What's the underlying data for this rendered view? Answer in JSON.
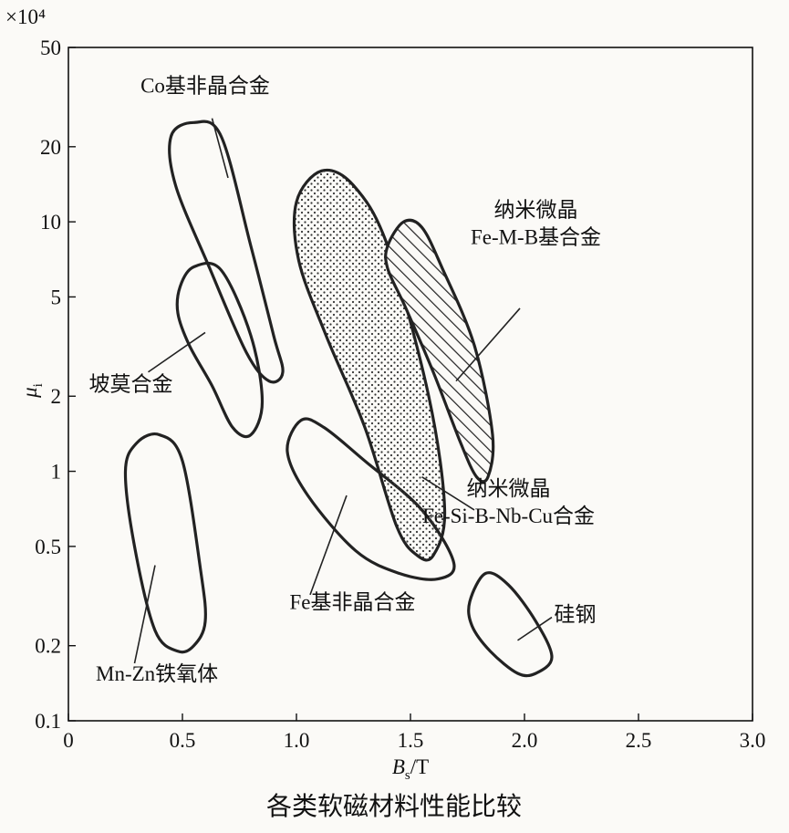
{
  "chart_data": {
    "type": "scatter",
    "title": "各类软磁材料性能比较",
    "multiplier_label": "×10⁴",
    "xlabel": {
      "base": "B",
      "sub": "s",
      "rest": "/T"
    },
    "ylabel": {
      "base": "μ",
      "sub": "i"
    },
    "xlim": [
      0,
      3.0
    ],
    "ylim": [
      0.1,
      50
    ],
    "y_scale": "log",
    "x_ticks": [
      "0",
      "0.5",
      "1.0",
      "1.5",
      "2.0",
      "2.5",
      "3.0"
    ],
    "x_tick_values": [
      0,
      0.5,
      1.0,
      1.5,
      2.0,
      2.5,
      3.0
    ],
    "y_ticks": [
      "0.1",
      "0.2",
      "0.5",
      "1",
      "2",
      "5",
      "10",
      "20",
      "50"
    ],
    "y_tick_values": [
      0.1,
      0.2,
      0.5,
      1,
      2,
      5,
      10,
      20,
      50
    ],
    "regions": [
      {
        "label": "Co基非晶合金",
        "fill": "none",
        "pts": [
          [
            0.45,
            22
          ],
          [
            0.55,
            25
          ],
          [
            0.67,
            22
          ],
          [
            0.8,
            8
          ],
          [
            0.9,
            3.5
          ],
          [
            0.94,
            2.5
          ],
          [
            0.88,
            2.3
          ],
          [
            0.78,
            3
          ],
          [
            0.62,
            6.5
          ],
          [
            0.47,
            14
          ]
        ]
      },
      {
        "label": "坡莫合金",
        "fill": "none",
        "pts": [
          [
            0.49,
            5.5
          ],
          [
            0.55,
            6.6
          ],
          [
            0.67,
            6.4
          ],
          [
            0.8,
            3.5
          ],
          [
            0.85,
            1.9
          ],
          [
            0.8,
            1.4
          ],
          [
            0.72,
            1.5
          ],
          [
            0.63,
            2.2
          ],
          [
            0.53,
            3.2
          ],
          [
            0.48,
            4.3
          ]
        ]
      },
      {
        "label": "Mn-Zn铁氧体",
        "fill": "none",
        "pts": [
          [
            0.25,
            1
          ],
          [
            0.3,
            1.3
          ],
          [
            0.4,
            1.4
          ],
          [
            0.5,
            1.1
          ],
          [
            0.58,
            0.4
          ],
          [
            0.6,
            0.25
          ],
          [
            0.55,
            0.2
          ],
          [
            0.48,
            0.19
          ],
          [
            0.38,
            0.23
          ],
          [
            0.29,
            0.5
          ]
        ]
      },
      {
        "label": "Fe基非晶合金",
        "fill": "none",
        "pts": [
          [
            0.96,
            1.2
          ],
          [
            1.02,
            1.6
          ],
          [
            1.12,
            1.5
          ],
          [
            1.3,
            1.1
          ],
          [
            1.55,
            0.7
          ],
          [
            1.69,
            0.43
          ],
          [
            1.62,
            0.37
          ],
          [
            1.45,
            0.39
          ],
          [
            1.26,
            0.48
          ],
          [
            1.05,
            0.8
          ]
        ]
      },
      {
        "label": "纳米微晶Fe-Si-B-Nb-Cu合金",
        "fill": "dots",
        "pts": [
          [
            1.0,
            12
          ],
          [
            1.11,
            16
          ],
          [
            1.25,
            14
          ],
          [
            1.4,
            8
          ],
          [
            1.58,
            2
          ],
          [
            1.65,
            0.7
          ],
          [
            1.6,
            0.46
          ],
          [
            1.53,
            0.46
          ],
          [
            1.44,
            0.6
          ],
          [
            1.3,
            1.5
          ],
          [
            1.13,
            3.5
          ],
          [
            1.01,
            7
          ]
        ]
      },
      {
        "label": "纳米微晶Fe-M-B基合金",
        "fill": "hatch",
        "pts": [
          [
            1.4,
            8
          ],
          [
            1.47,
            10
          ],
          [
            1.55,
            9.5
          ],
          [
            1.64,
            6.5
          ],
          [
            1.78,
            3.2
          ],
          [
            1.86,
            1.4
          ],
          [
            1.84,
            0.95
          ],
          [
            1.79,
            0.95
          ],
          [
            1.72,
            1.3
          ],
          [
            1.6,
            2.5
          ],
          [
            1.48,
            4.5
          ],
          [
            1.4,
            6.5
          ]
        ]
      },
      {
        "label": "硅钢",
        "fill": "none",
        "pts": [
          [
            1.76,
            0.3
          ],
          [
            1.83,
            0.39
          ],
          [
            1.93,
            0.35
          ],
          [
            2.05,
            0.25
          ],
          [
            2.12,
            0.18
          ],
          [
            2.05,
            0.155
          ],
          [
            1.97,
            0.155
          ],
          [
            1.85,
            0.19
          ],
          [
            1.77,
            0.24
          ]
        ]
      }
    ],
    "annotations": [
      {
        "lines": [
          "Co基非晶合金"
        ],
        "anchor": "middle",
        "tx": 0.6,
        "ty": 33,
        "lx1": 0.63,
        "ly1": 26,
        "lx2": 0.7,
        "ly2": 15
      },
      {
        "lines": [
          "坡莫合金"
        ],
        "anchor": "start",
        "tx": 0.09,
        "ty": 2.1,
        "lx1": 0.35,
        "ly1": 2.5,
        "lx2": 0.6,
        "ly2": 3.6
      },
      {
        "lines": [
          "Mn-Zn铁氧体"
        ],
        "anchor": "start",
        "tx": 0.12,
        "ty": 0.145,
        "lx1": 0.29,
        "ly1": 0.17,
        "lx2": 0.38,
        "ly2": 0.42
      },
      {
        "lines": [
          "Fe基非晶合金"
        ],
        "anchor": "start",
        "tx": 0.97,
        "ty": 0.28,
        "lx1": 1.06,
        "ly1": 0.32,
        "lx2": 1.22,
        "ly2": 0.8
      },
      {
        "lines": [
          "纳米微晶",
          "Fe-Si-B-Nb-Cu合金"
        ],
        "anchor": "middle",
        "tx": 1.93,
        "ty": 0.8,
        "lx1": 1.78,
        "ly1": 0.7,
        "lx2": 1.55,
        "ly2": 0.95
      },
      {
        "lines": [
          "纳米微晶",
          "Fe-M-B基合金"
        ],
        "anchor": "middle",
        "tx": 2.05,
        "ty": 10.5,
        "lx1": 1.98,
        "ly1": 4.5,
        "lx2": 1.7,
        "ly2": 2.3
      },
      {
        "lines": [
          "硅钢"
        ],
        "anchor": "start",
        "tx": 2.13,
        "ty": 0.25,
        "lx1": 2.12,
        "ly1": 0.26,
        "lx2": 1.97,
        "ly2": 0.21
      }
    ]
  }
}
